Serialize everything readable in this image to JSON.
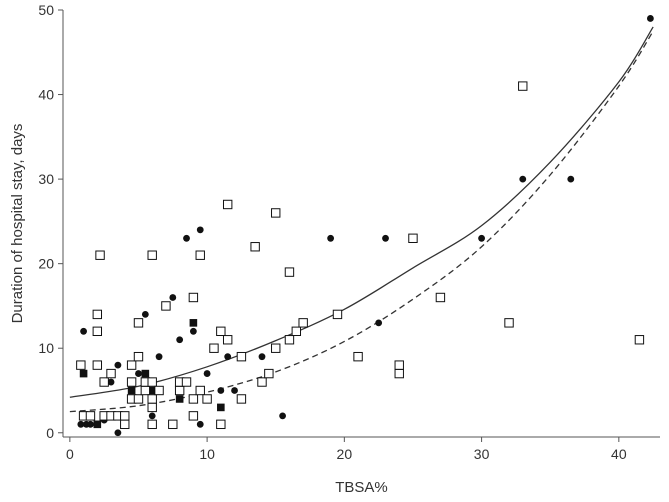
{
  "chart_data": {
    "type": "scatter",
    "title": "",
    "xlabel": "TBSA%",
    "ylabel": "Duration of hospital stay, days",
    "xlim": [
      -0.5,
      43
    ],
    "ylim": [
      -0.5,
      50
    ],
    "x_ticks": [
      0,
      10,
      20,
      30,
      40
    ],
    "y_ticks": [
      0,
      10,
      20,
      30,
      40,
      50
    ],
    "grid": false,
    "legend": "none",
    "colors": {
      "axis": "#555555",
      "marker": "#111111",
      "open_fill": "#ffffff",
      "curve": "#333333"
    },
    "series": [
      {
        "marker": "filled-circle",
        "points": [
          [
            0.8,
            1
          ],
          [
            1.2,
            1
          ],
          [
            1.5,
            1
          ],
          [
            2.0,
            1
          ],
          [
            2.5,
            1.5
          ],
          [
            3.5,
            0
          ],
          [
            4.0,
            1
          ],
          [
            6.0,
            2
          ],
          [
            7.5,
            1
          ],
          [
            9.5,
            1
          ],
          [
            1.0,
            12
          ],
          [
            3.0,
            6
          ],
          [
            3.5,
            8
          ],
          [
            5.0,
            7
          ],
          [
            5.5,
            14
          ],
          [
            6.5,
            9
          ],
          [
            7.5,
            16
          ],
          [
            8.0,
            11
          ],
          [
            8.5,
            23
          ],
          [
            9.0,
            12
          ],
          [
            9.5,
            24
          ],
          [
            10.0,
            7
          ],
          [
            11.0,
            5
          ],
          [
            11.5,
            9
          ],
          [
            12.0,
            5
          ],
          [
            14.0,
            9
          ],
          [
            15.5,
            2
          ],
          [
            19.0,
            23
          ],
          [
            22.5,
            13
          ],
          [
            23.0,
            23
          ],
          [
            30.0,
            23
          ],
          [
            33.0,
            30
          ],
          [
            36.5,
            30
          ],
          [
            42.3,
            49
          ]
        ]
      },
      {
        "marker": "filled-square",
        "points": [
          [
            1.0,
            7
          ],
          [
            2.0,
            1
          ],
          [
            4.5,
            5
          ],
          [
            5.5,
            7
          ],
          [
            6.0,
            5
          ],
          [
            8.0,
            4
          ],
          [
            9.0,
            13
          ],
          [
            11.0,
            3
          ]
        ]
      },
      {
        "marker": "open-square",
        "points": [
          [
            0.8,
            8
          ],
          [
            1.0,
            2
          ],
          [
            1.5,
            2
          ],
          [
            2.0,
            8
          ],
          [
            2.0,
            12
          ],
          [
            2.0,
            14
          ],
          [
            2.2,
            21
          ],
          [
            2.5,
            6
          ],
          [
            2.5,
            2
          ],
          [
            3.0,
            2
          ],
          [
            3.0,
            7
          ],
          [
            3.5,
            2
          ],
          [
            4.0,
            1
          ],
          [
            4.0,
            2
          ],
          [
            4.5,
            4
          ],
          [
            4.5,
            6
          ],
          [
            4.5,
            8
          ],
          [
            5.0,
            9
          ],
          [
            5.0,
            4
          ],
          [
            5.0,
            13
          ],
          [
            5.5,
            5
          ],
          [
            5.5,
            6
          ],
          [
            6.0,
            1
          ],
          [
            6.0,
            3
          ],
          [
            6.0,
            4
          ],
          [
            6.0,
            6
          ],
          [
            6.0,
            21
          ],
          [
            6.5,
            5
          ],
          [
            7.0,
            15
          ],
          [
            7.5,
            1
          ],
          [
            8.0,
            5
          ],
          [
            8.0,
            6
          ],
          [
            8.5,
            6
          ],
          [
            9.0,
            2
          ],
          [
            9.0,
            4
          ],
          [
            9.0,
            16
          ],
          [
            9.5,
            5
          ],
          [
            9.5,
            21
          ],
          [
            10.0,
            4
          ],
          [
            10.5,
            10
          ],
          [
            11.0,
            1
          ],
          [
            11.0,
            12
          ],
          [
            11.5,
            11
          ],
          [
            11.5,
            27
          ],
          [
            12.5,
            4
          ],
          [
            12.5,
            9
          ],
          [
            13.5,
            22
          ],
          [
            14.0,
            6
          ],
          [
            14.5,
            7
          ],
          [
            15.0,
            10
          ],
          [
            15.0,
            26
          ],
          [
            16.0,
            11
          ],
          [
            16.0,
            19
          ],
          [
            16.5,
            12
          ],
          [
            17.0,
            13
          ],
          [
            19.5,
            14
          ],
          [
            21.0,
            9
          ],
          [
            24.0,
            7
          ],
          [
            24.0,
            8
          ],
          [
            25.0,
            23
          ],
          [
            27.0,
            16
          ],
          [
            32.0,
            13
          ],
          [
            33.0,
            41
          ],
          [
            41.5,
            11
          ]
        ]
      }
    ],
    "fits": [
      {
        "style": "solid",
        "model": "exponential",
        "x": [
          0,
          5,
          10,
          15,
          20,
          25,
          30,
          35,
          40,
          42.5
        ],
        "y": [
          4.2,
          5.5,
          7.8,
          10.9,
          14.6,
          19.5,
          24.5,
          32.0,
          41.5,
          48.0
        ]
      },
      {
        "style": "dashed",
        "model": "exponential",
        "x": [
          0,
          5,
          10,
          15,
          20,
          25,
          30,
          35,
          40,
          42.5
        ],
        "y": [
          2.5,
          3.2,
          4.8,
          7.2,
          10.8,
          15.8,
          22.0,
          30.5,
          41.0,
          47.5
        ]
      }
    ]
  }
}
